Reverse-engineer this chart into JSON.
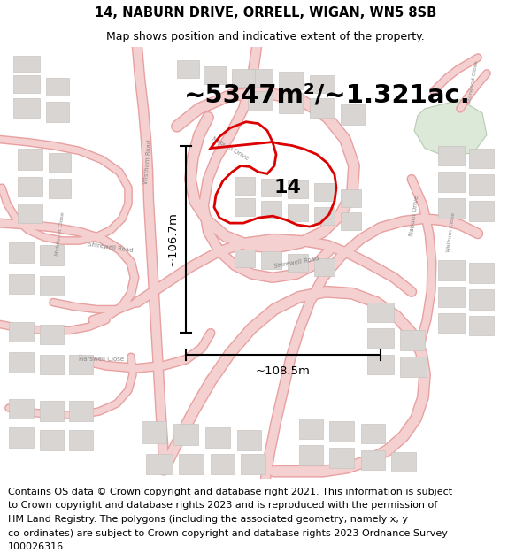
{
  "title": "14, NABURN DRIVE, ORRELL, WIGAN, WN5 8SB",
  "subtitle": "Map shows position and indicative extent of the property.",
  "area_text": "~5347m²/~1.321ac.",
  "label_14": "14",
  "dim_vertical": "~106.7m",
  "dim_horizontal": "~108.5m",
  "footer_line1": "Contains OS data © Crown copyright and database right 2021. This information is subject",
  "footer_line2": "to Crown copyright and database rights 2023 and is reproduced with the permission of",
  "footer_line3": "HM Land Registry. The polygons (including the associated geometry, namely x, y",
  "footer_line4": "co-ordinates) are subject to Crown copyright and database rights 2023 Ordnance Survey",
  "footer_line5": "100026316.",
  "map_bg": "#f2f0ee",
  "road_fill": "#f5d0d0",
  "road_outline": "#e8a0a0",
  "building_fill": "#d8d5d2",
  "building_outline": "#c8c4c0",
  "prop_color": "#dd0000",
  "green_fill": "#dce8d8",
  "green_outline": "#b8ccb0",
  "title_fontsize": 10.5,
  "subtitle_fontsize": 9,
  "area_fontsize": 21,
  "label_fontsize": 16,
  "footer_fontsize": 8,
  "dim_fontsize": 9.5,
  "road_label_fontsize": 5,
  "road_label_color": "#888888"
}
